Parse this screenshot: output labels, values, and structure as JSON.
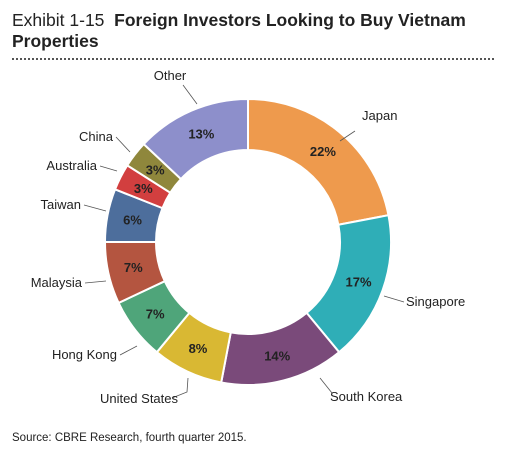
{
  "exhibit": "Exhibit 1-15",
  "title_line1": "Foreign Investors Looking to Buy Vietnam",
  "title_line2": "Properties",
  "source": "Source: CBRE Research, fourth quarter 2015.",
  "chart_data": {
    "type": "pie",
    "donut": true,
    "title": "Foreign Investors Looking to Buy Vietnam Properties",
    "slices": [
      {
        "label": "Japan",
        "value": 22,
        "value_label": "22%",
        "color": "#EE9A4D"
      },
      {
        "label": "Singapore",
        "value": 17,
        "value_label": "17%",
        "color": "#2FAEB7"
      },
      {
        "label": "South Korea",
        "value": 14,
        "value_label": "14%",
        "color": "#7A4A7A"
      },
      {
        "label": "United States",
        "value": 8,
        "value_label": "8%",
        "color": "#D9B833"
      },
      {
        "label": "Hong Kong",
        "value": 7,
        "value_label": "7%",
        "color": "#4FA57A"
      },
      {
        "label": "Malaysia",
        "value": 7,
        "value_label": "7%",
        "color": "#B45540"
      },
      {
        "label": "Taiwan",
        "value": 6,
        "value_label": "6%",
        "color": "#4D6E9C"
      },
      {
        "label": "Australia",
        "value": 3,
        "value_label": "3%",
        "color": "#D23F3F"
      },
      {
        "label": "China",
        "value": 3,
        "value_label": "3%",
        "color": "#8F873C"
      },
      {
        "label": "Other",
        "value": 13,
        "value_label": "13%",
        "color": "#8D8FCB"
      }
    ]
  }
}
